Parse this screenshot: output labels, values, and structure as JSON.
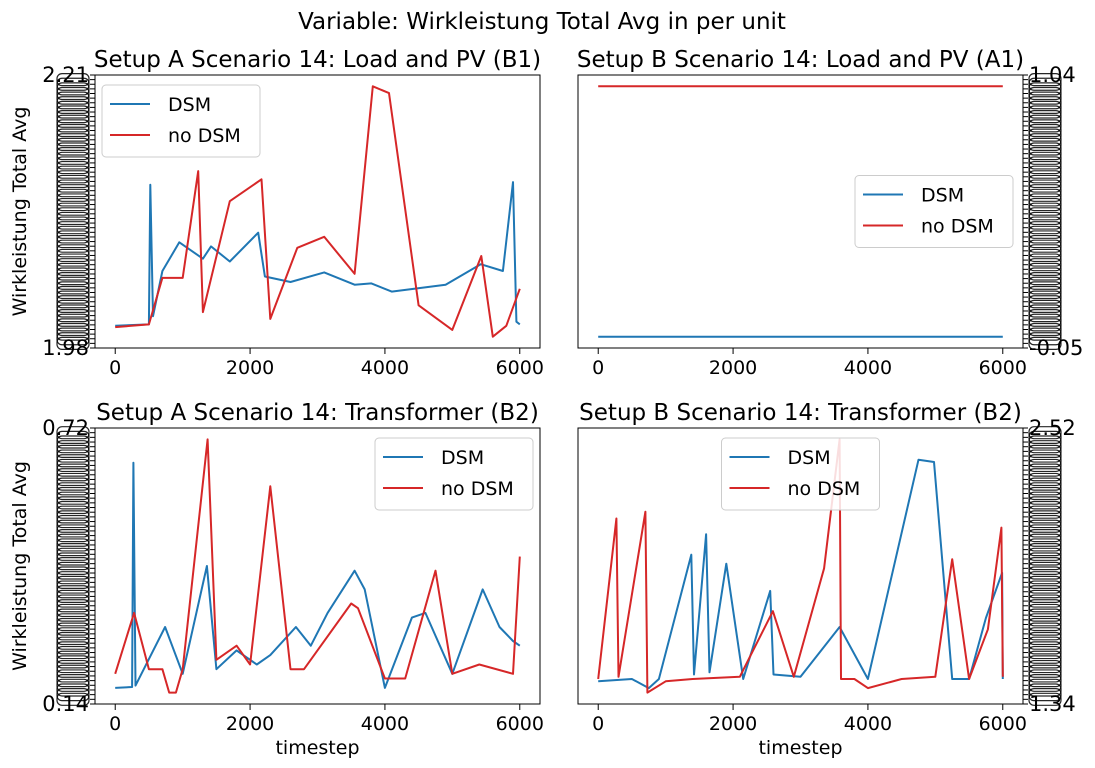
{
  "figure": {
    "suptitle": "Variable: Wirkleistung Total Avg in per unit",
    "colors": {
      "dsm": "#1f77b4",
      "no_dsm": "#d62728"
    }
  },
  "chart_data": [
    {
      "type": "line",
      "title": "Setup A Scenario 14: Load and PV (B1)",
      "xlabel": "",
      "ylabel": "Wirkleistung Total Avg",
      "xlim": [
        -300,
        6300
      ],
      "xticks": [
        "0",
        "2000",
        "4000",
        "6000"
      ],
      "yaxis_side": "left",
      "yticks_top": "2.21",
      "yticks_bottom": "1.98",
      "ytick_count": 60,
      "legend": {
        "position": "upper-left",
        "entries": [
          "DSM",
          "no DSM"
        ]
      },
      "series": [
        {
          "name": "DSM",
          "x": [
            0,
            500,
            520,
            560,
            700,
            950,
            1300,
            1420,
            1700,
            2120,
            2220,
            2600,
            3100,
            3550,
            3800,
            4100,
            4900,
            5420,
            5750,
            5900,
            5950,
            6000
          ],
          "y": [
            2.005,
            2.006,
            2.108,
            2.012,
            2.045,
            2.066,
            2.054,
            2.063,
            2.052,
            2.073,
            2.041,
            2.037,
            2.044,
            2.035,
            2.036,
            2.03,
            2.035,
            2.05,
            2.045,
            2.11,
            2.008,
            2.006
          ]
        },
        {
          "name": "no DSM",
          "x": [
            0,
            500,
            700,
            1000,
            1230,
            1300,
            1700,
            2170,
            2300,
            2700,
            3100,
            3550,
            3820,
            4060,
            4500,
            5000,
            5430,
            5600,
            5800,
            6000
          ],
          "y": [
            2.004,
            2.006,
            2.04,
            2.04,
            2.118,
            2.015,
            2.096,
            2.112,
            2.01,
            2.062,
            2.07,
            2.043,
            2.18,
            2.175,
            2.02,
            2.002,
            2.056,
            1.997,
            2.005,
            2.032
          ]
        }
      ]
    },
    {
      "type": "line",
      "title": "Setup B Scenario 14: Load and PV (A1)",
      "xlabel": "",
      "ylabel": "",
      "xlim": [
        -300,
        6300
      ],
      "xticks": [
        "0",
        "2000",
        "4000",
        "6000"
      ],
      "yaxis_side": "right",
      "yticks_top": "1.04",
      "yticks_bottom": "-0.05",
      "ytick_count": 60,
      "legend": {
        "position": "center-right",
        "entries": [
          "DSM",
          "no DSM"
        ]
      },
      "series": [
        {
          "name": "DSM",
          "x": [
            0,
            6000
          ],
          "y": [
            -0.006,
            -0.006
          ]
        },
        {
          "name": "no DSM",
          "x": [
            0,
            6000
          ],
          "y": [
            1.0,
            1.0
          ]
        }
      ]
    },
    {
      "type": "line",
      "title": "Setup A Scenario 14: Transformer (B2)",
      "xlabel": "timestep",
      "ylabel": "Wirkleistung Total Avg",
      "xlim": [
        -300,
        6300
      ],
      "xticks": [
        "0",
        "2000",
        "4000",
        "6000"
      ],
      "yaxis_side": "left",
      "yticks_top": "0.72",
      "yticks_bottom": "0.14",
      "ytick_count": 60,
      "legend": {
        "position": "upper-right",
        "entries": [
          "DSM",
          "no DSM"
        ]
      },
      "series": [
        {
          "name": "DSM",
          "x": [
            0,
            250,
            270,
            300,
            740,
            1000,
            1360,
            1500,
            1800,
            2100,
            2300,
            2680,
            2900,
            3150,
            3550,
            3700,
            4000,
            4400,
            4600,
            5000,
            5450,
            5700,
            5900,
            6000
          ],
          "y": [
            0.17,
            0.172,
            0.65,
            0.175,
            0.3,
            0.2,
            0.43,
            0.21,
            0.25,
            0.22,
            0.24,
            0.3,
            0.26,
            0.33,
            0.42,
            0.38,
            0.17,
            0.32,
            0.33,
            0.2,
            0.38,
            0.3,
            0.27,
            0.26
          ]
        },
        {
          "name": "no DSM",
          "x": [
            0,
            280,
            500,
            700,
            800,
            900,
            1000,
            1370,
            1500,
            1800,
            2000,
            2300,
            2600,
            2800,
            3500,
            3600,
            4000,
            4300,
            4750,
            5000,
            5400,
            5900,
            6000
          ],
          "y": [
            0.2,
            0.33,
            0.21,
            0.21,
            0.16,
            0.16,
            0.21,
            0.7,
            0.23,
            0.26,
            0.22,
            0.6,
            0.21,
            0.21,
            0.35,
            0.34,
            0.19,
            0.19,
            0.42,
            0.2,
            0.22,
            0.2,
            0.45
          ]
        }
      ]
    },
    {
      "type": "line",
      "title": "Setup B Scenario 14: Transformer (B2)",
      "xlabel": "timestep",
      "ylabel": "",
      "xlim": [
        -300,
        6300
      ],
      "xticks": [
        "0",
        "2000",
        "4000",
        "6000"
      ],
      "yaxis_side": "right",
      "yticks_top": "2.52",
      "yticks_bottom": "1.34",
      "ytick_count": 60,
      "legend": {
        "position": "upper-center",
        "entries": [
          "DSM",
          "no DSM"
        ]
      },
      "series": [
        {
          "name": "DSM",
          "x": [
            0,
            500,
            750,
            900,
            1380,
            1420,
            1600,
            1650,
            1900,
            2150,
            2550,
            2600,
            3000,
            3580,
            4000,
            4750,
            4980,
            5250,
            5500,
            5750,
            5990,
            6000
          ],
          "y": [
            1.42,
            1.43,
            1.39,
            1.43,
            1.98,
            1.45,
            2.07,
            1.46,
            1.94,
            1.43,
            1.82,
            1.45,
            1.44,
            1.66,
            1.43,
            2.4,
            2.39,
            1.43,
            1.43,
            1.7,
            1.9,
            1.43
          ]
        },
        {
          "name": "no DSM",
          "x": [
            0,
            270,
            300,
            700,
            730,
            1000,
            1400,
            2100,
            2590,
            2900,
            3350,
            3580,
            3600,
            3800,
            4000,
            4500,
            5000,
            5250,
            5500,
            5780,
            5980,
            6000
          ],
          "y": [
            1.43,
            2.14,
            1.44,
            2.17,
            1.37,
            1.42,
            1.43,
            1.44,
            1.73,
            1.44,
            1.92,
            2.49,
            1.43,
            1.43,
            1.39,
            1.43,
            1.44,
            1.96,
            1.43,
            1.65,
            2.1,
            1.44
          ]
        }
      ]
    }
  ]
}
